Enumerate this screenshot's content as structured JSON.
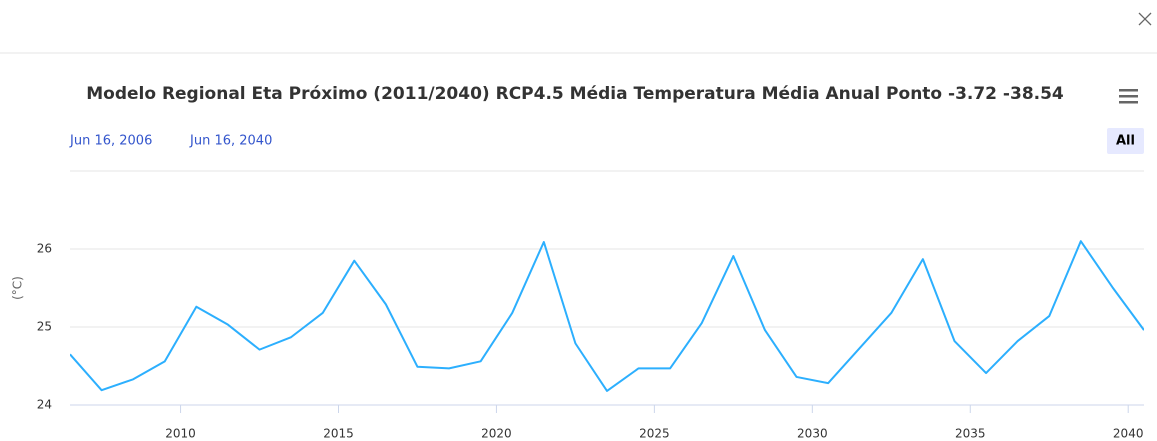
{
  "chart_data": {
    "type": "line",
    "title": "Modelo Regional Eta Próximo (2011/2040) RCP4.5 Média Temperatura Média Anual Ponto -3.72 -38.54",
    "range_inputs": [
      "Jun 16, 2006",
      "Jun 16, 2040"
    ],
    "range_button": "All",
    "y_label": "(°C)",
    "x": [
      2006.5,
      2007.5,
      2008.5,
      2009.5,
      2010.5,
      2011.5,
      2012.5,
      2013.5,
      2014.5,
      2015.5,
      2016.5,
      2017.5,
      2018.5,
      2019.5,
      2020.5,
      2021.5,
      2022.5,
      2023.5,
      2024.5,
      2025.5,
      2026.5,
      2027.5,
      2028.5,
      2029.5,
      2030.5,
      2031.5,
      2032.5,
      2033.5,
      2034.5,
      2035.5,
      2036.5,
      2037.5,
      2038.5,
      2039.5,
      2040.5
    ],
    "series": [
      {
        "color": "#2caffe",
        "values": [
          24.65,
          24.19,
          24.33,
          24.56,
          25.26,
          25.03,
          24.71,
          24.87,
          25.18,
          25.85,
          25.29,
          24.49,
          24.47,
          24.56,
          25.18,
          26.09,
          24.79,
          24.18,
          24.47,
          24.47,
          25.05,
          25.91,
          24.96,
          24.36,
          24.28,
          24.73,
          25.18,
          25.87,
          24.82,
          24.41,
          24.82,
          25.14,
          26.1,
          25.51,
          24.96
        ]
      }
    ],
    "xlim": [
      2006.5,
      2040.5
    ],
    "xticks": [
      2010,
      2015,
      2020,
      2025,
      2030,
      2035,
      2040
    ],
    "ylim": [
      24,
      27
    ],
    "yticks": [
      24,
      25,
      26
    ],
    "grid": true
  }
}
